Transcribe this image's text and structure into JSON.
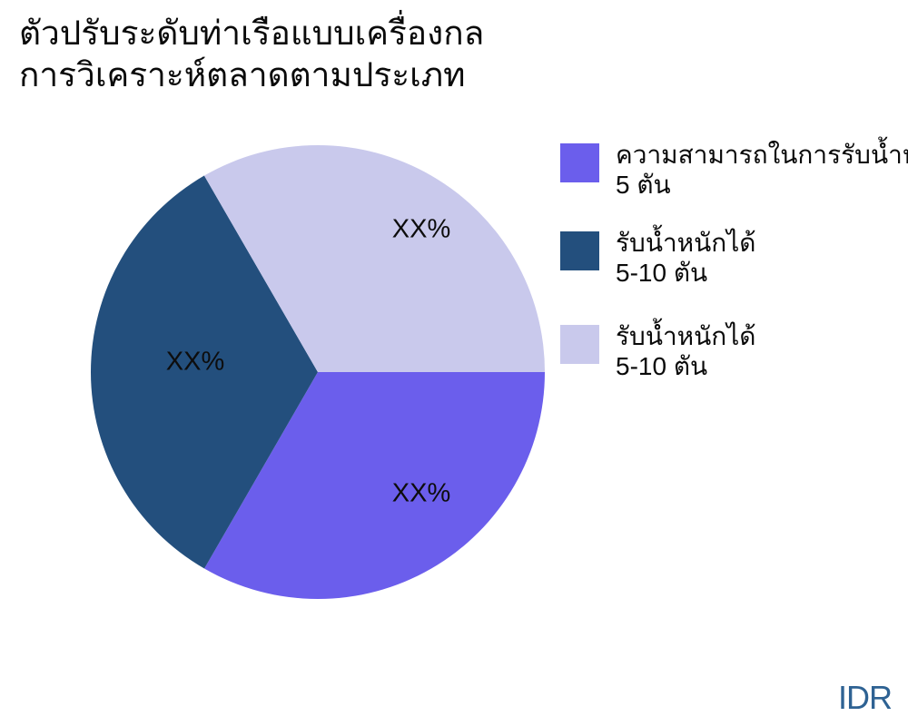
{
  "title": {
    "line1": "ตัวปรับระดับท่าเรือแบบเครื่องกล",
    "line2": "การวิเคราะห์ตลาดตามประเภท"
  },
  "footer": {
    "currency_label": "IDR"
  },
  "chart_data": {
    "type": "pie",
    "title": "ตัวปรับระดับท่าเรือแบบเครื่องกล การวิเคราะห์ตลาดตามประเภท",
    "legend_position": "right",
    "start_angle_deg_from_east_clockwise": 0,
    "series": [
      {
        "legend_line1": "ความสามารถในการรับน้ำห",
        "legend_line2": "5 ตัน",
        "value": 33.33,
        "display_label": "XX%",
        "color": "#6B5EEC"
      },
      {
        "legend_line1": "รับน้ำหนักได้",
        "legend_line2": "5-10 ตัน",
        "value": 33.33,
        "display_label": "XX%",
        "color": "#234F7D"
      },
      {
        "legend_line1": "รับน้ำหนักได้",
        "legend_line2": "5-10 ตัน",
        "value": 33.34,
        "display_label": "XX%",
        "color": "#C9C9EC"
      }
    ]
  }
}
